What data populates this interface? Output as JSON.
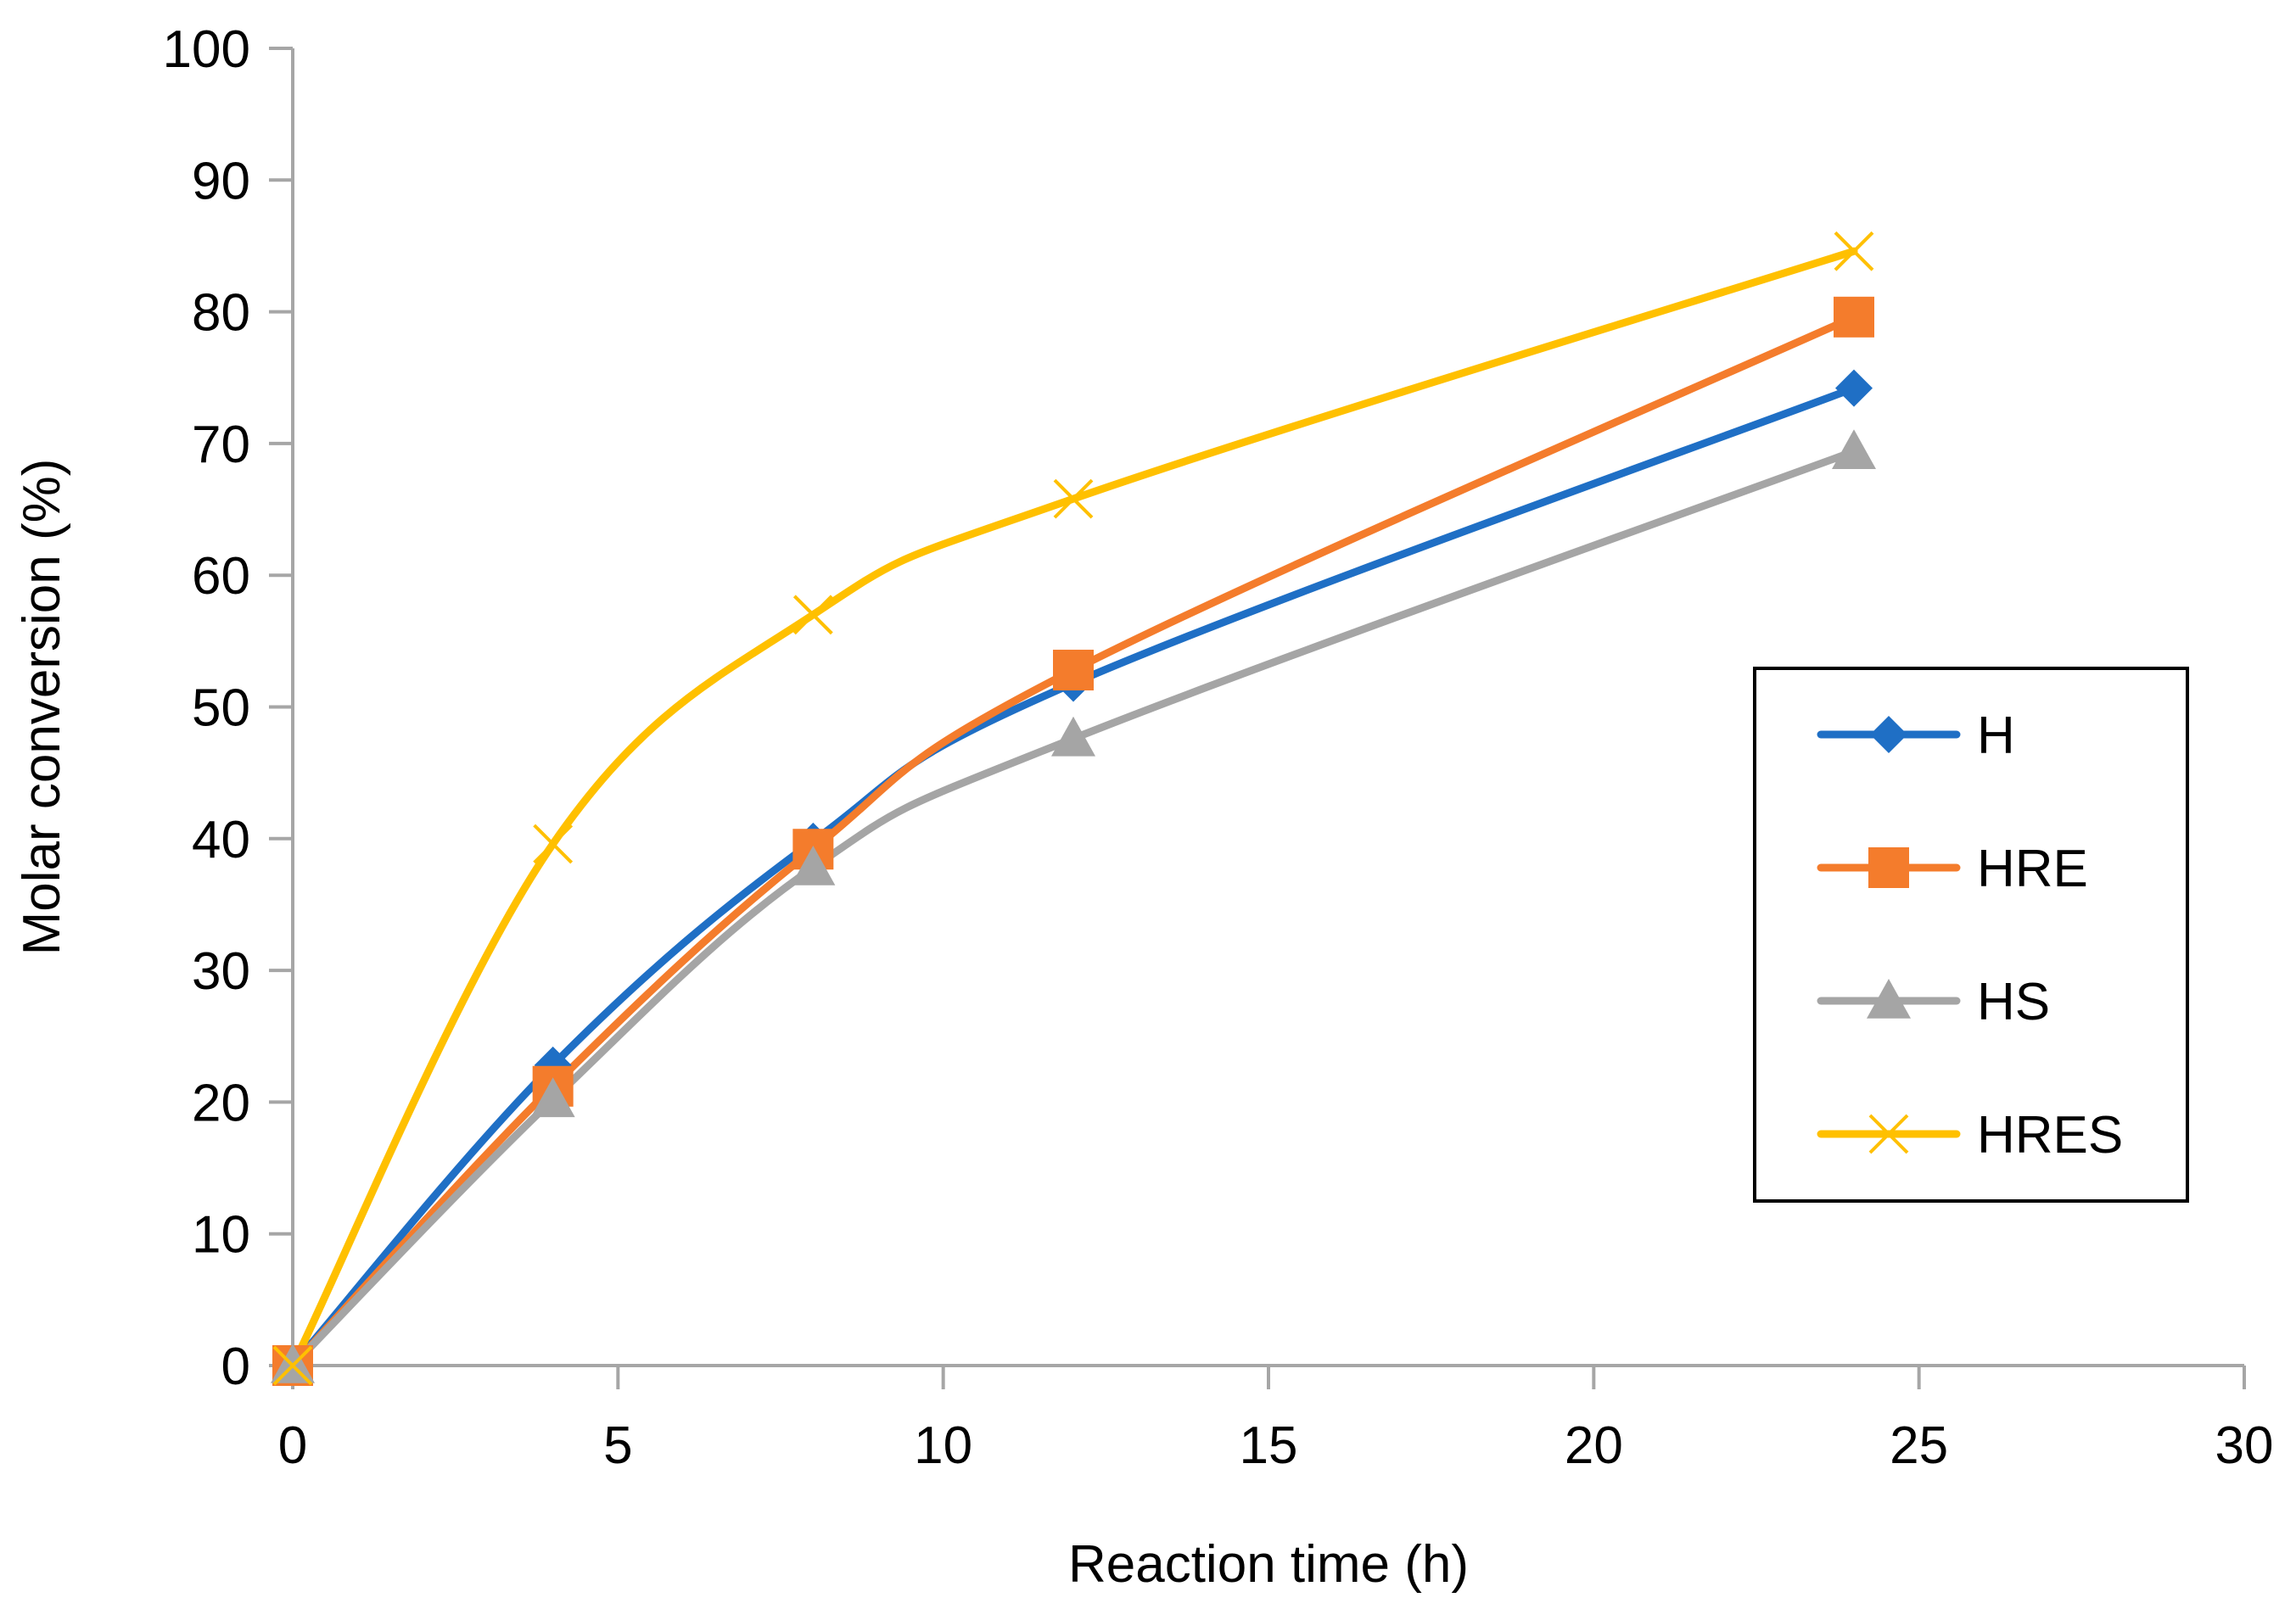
{
  "chart_data": {
    "type": "line",
    "title": "",
    "xlabel": "Reaction time (h)",
    "ylabel": "Molar conversion  (%)",
    "xlim": [
      0,
      30
    ],
    "ylim": [
      0,
      100
    ],
    "xticks": [
      0,
      5,
      10,
      15,
      20,
      25,
      30
    ],
    "yticks": [
      0,
      10,
      20,
      30,
      40,
      50,
      60,
      70,
      80,
      90,
      100
    ],
    "grid": false,
    "legend_position": "right",
    "series": [
      {
        "name": "H",
        "color": "#1F6FC5",
        "marker": "diamond",
        "x": [
          0,
          4,
          8,
          12,
          24
        ],
        "values": [
          0,
          22.8,
          39.8,
          51.8,
          74.2
        ]
      },
      {
        "name": "HRE",
        "color": "#F47C2C",
        "marker": "square",
        "x": [
          0,
          4,
          8,
          12,
          24
        ],
        "values": [
          0,
          21.2,
          39.2,
          52.8,
          79.6
        ]
      },
      {
        "name": "HS",
        "color": "#A5A5A5",
        "marker": "triangle",
        "x": [
          0,
          4,
          8,
          12,
          24
        ],
        "values": [
          0,
          20.2,
          37.8,
          47.6,
          69.4
        ]
      },
      {
        "name": "HRES",
        "color": "#FFC000",
        "marker": "x",
        "x": [
          0,
          4,
          8,
          12,
          24
        ],
        "values": [
          0,
          39.6,
          57.0,
          65.8,
          84.6
        ]
      }
    ]
  }
}
